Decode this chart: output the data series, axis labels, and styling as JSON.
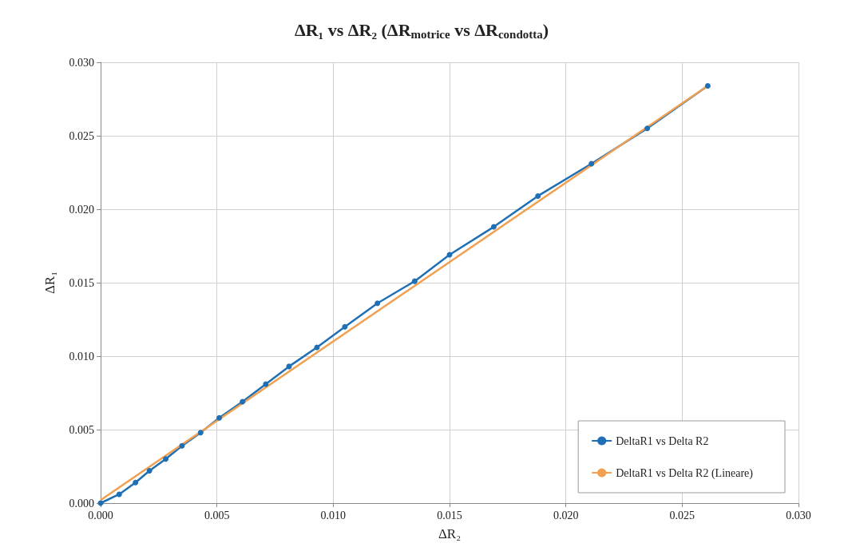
{
  "chart_data": {
    "type": "line",
    "title": "ΔR₁ vs ΔR₂ (ΔR$_{motrice}$ vs ΔR$_{condotta}$)",
    "xlabel": "ΔR₂",
    "ylabel": "ΔR₁",
    "xlim": [
      0,
      0.03
    ],
    "xticks": [
      {
        "value": 0,
        "label": "0.000"
      },
      {
        "value": 0.005,
        "label": "0.005"
      },
      {
        "value": 0.01,
        "label": "0.010"
      },
      {
        "value": 0.015,
        "label": "0.015"
      },
      {
        "value": 0.02,
        "label": "0.020"
      },
      {
        "value": 0.025,
        "label": "0.025"
      },
      {
        "value": 0.03,
        "label": "0.030"
      }
    ],
    "ylim": [
      0,
      0.03
    ],
    "yticks": [
      {
        "value": 0,
        "label": "0.000"
      },
      {
        "value": 0.005,
        "label": "0.005"
      },
      {
        "value": 0.01,
        "label": "0.010"
      },
      {
        "value": 0.015,
        "label": "0.015"
      },
      {
        "value": 0.02,
        "label": "0.020"
      },
      {
        "value": 0.025,
        "label": "0.025"
      },
      {
        "value": 0.03,
        "label": "0.030"
      }
    ],
    "grid": true,
    "legend": "bottom right",
    "series": [
      {
        "name": "DeltaR1 vs Delta R2",
        "color": "#1f6fb5",
        "marker": "circle",
        "x": [
          0,
          0.0008,
          0.0015,
          0.0021,
          0.0028,
          0.0035,
          0.0043,
          0.0051,
          0.0061,
          0.0071,
          0.0081,
          0.0093,
          0.0105,
          0.0119,
          0.0135,
          0.015,
          0.0169,
          0.0188,
          0.0211,
          0.0235,
          0.0261
        ],
        "values": [
          0,
          0.0006,
          0.0014,
          0.0022,
          0.003,
          0.0039,
          0.0048,
          0.0058,
          0.0069,
          0.0081,
          0.0093,
          0.0106,
          0.012,
          0.0136,
          0.0151,
          0.0169,
          0.0188,
          0.0209,
          0.0231,
          0.0255,
          0.0284
        ]
      },
      {
        "name": "DeltaR1 vs Delta R2 (Lineare)",
        "color": "#f0a050",
        "marker": "none",
        "x": [
          0,
          0.0261
        ],
        "values": [
          0.0002,
          0.0284
        ]
      }
    ]
  }
}
